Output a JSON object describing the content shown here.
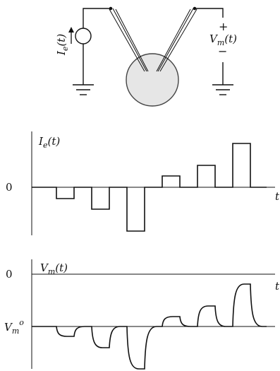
{
  "circuit": {
    "current_source_label": "I_e(t)",
    "voltage_label": "V_m(t)",
    "plus_sign": "+",
    "minus_sign": "−"
  },
  "current_plot": {
    "ylabel": "I_e(t)",
    "zero_label": "0",
    "xlabel": "t"
  },
  "voltage_plot": {
    "ylabel": "V_m(t)",
    "zero_label": "0",
    "xlabel": "t",
    "rest_label": "V_m^o"
  }
}
